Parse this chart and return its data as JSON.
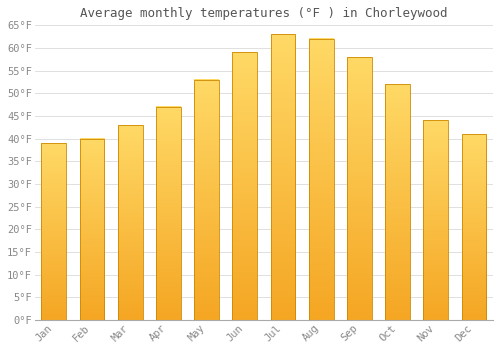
{
  "title": "Average monthly temperatures (°F ) in Chorleywood",
  "months": [
    "Jan",
    "Feb",
    "Mar",
    "Apr",
    "May",
    "Jun",
    "Jul",
    "Aug",
    "Sep",
    "Oct",
    "Nov",
    "Dec"
  ],
  "values": [
    39,
    40,
    43,
    47,
    53,
    59,
    63,
    62,
    58,
    52,
    44,
    41
  ],
  "bar_color_top": "#FFD966",
  "bar_color_bottom": "#F5A623",
  "bar_color_edge": "#CC8800",
  "ylim": [
    0,
    65
  ],
  "yticks": [
    0,
    5,
    10,
    15,
    20,
    25,
    30,
    35,
    40,
    45,
    50,
    55,
    60,
    65
  ],
  "ytick_labels": [
    "0°F",
    "5°F",
    "10°F",
    "15°F",
    "20°F",
    "25°F",
    "30°F",
    "35°F",
    "40°F",
    "45°F",
    "50°F",
    "55°F",
    "60°F",
    "65°F"
  ],
  "grid_color": "#e0e0e0",
  "bg_color": "#ffffff",
  "plot_bg_color": "#ffffff",
  "title_fontsize": 9,
  "tick_fontsize": 7.5,
  "font_family": "monospace",
  "tick_color": "#888888",
  "title_color": "#555555",
  "bar_width": 0.65
}
